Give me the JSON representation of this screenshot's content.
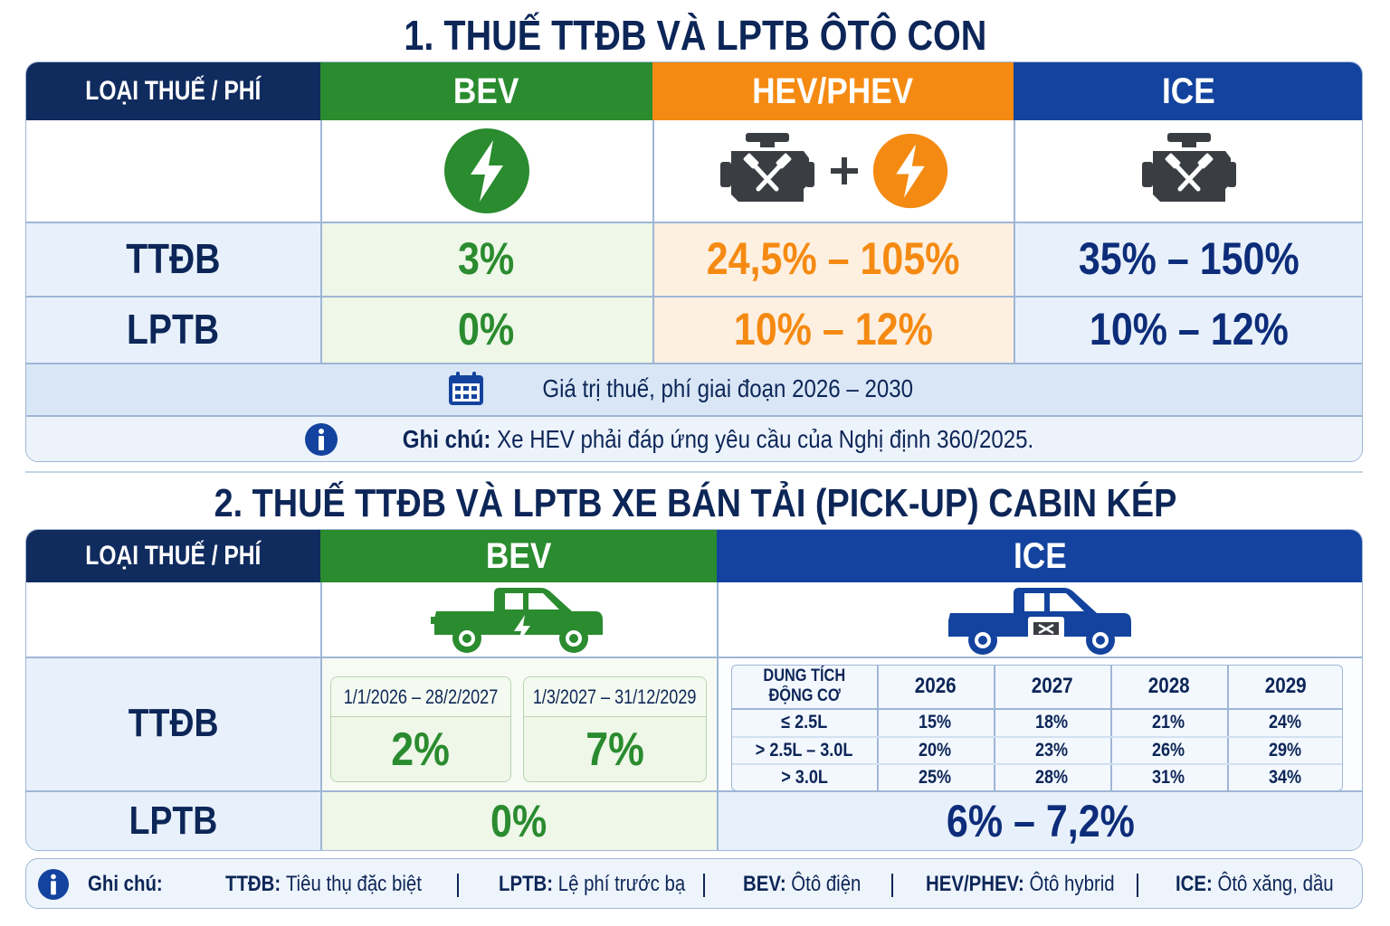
{
  "section1": {
    "title": "1. THUẾ TTĐB VÀ LPTB ÔTÔ CON",
    "header": {
      "label_col": "LOẠI THUẾ / PHÍ",
      "bev": "BEV",
      "hev": "HEV/PHEV",
      "ice": "ICE"
    },
    "icons": {
      "bev": "lightning-icon",
      "hev": [
        "engine-icon",
        "plus-icon",
        "lightning-icon"
      ],
      "ice": "engine-icon"
    },
    "rows": [
      {
        "label": "TTĐB",
        "bev": "3%",
        "hev": "24,5% – 105%",
        "ice": "35% – 150%"
      },
      {
        "label": "LPTB",
        "bev": "0%",
        "hev": "10% – 12%",
        "ice": "10% – 12%"
      }
    ],
    "period_note": "Giá trị thuế, phí giai đoạn 2026 – 2030",
    "note_label": "Ghi chú:",
    "note_text": "Xe HEV phải đáp ứng yêu cầu của Nghị định 360/2025."
  },
  "section2": {
    "title": "2. THUẾ TTĐB VÀ LPTB XE BÁN TẢI (PICK-UP) CABIN KÉP",
    "header": {
      "label_col": "LOẠI THUẾ / PHÍ",
      "bev": "BEV",
      "ice": "ICE"
    },
    "icons": {
      "bev": "electric-pickup-icon",
      "ice": "engine-pickup-icon"
    },
    "ttdb_label": "TTĐB",
    "bev_periods": [
      {
        "period": "1/1/2026 – 28/2/2027",
        "value": "2%"
      },
      {
        "period": "1/3/2027 – 31/12/2029",
        "value": "7%"
      }
    ],
    "ice_table": {
      "header_first": [
        "DUNG TÍCH",
        "ĐỘNG CƠ"
      ],
      "years": [
        "2026",
        "2027",
        "2028",
        "2029"
      ],
      "rows": [
        {
          "capacity": "≤ 2.5L",
          "values": [
            "15%",
            "18%",
            "21%",
            "24%"
          ]
        },
        {
          "capacity": "> 2.5L – 3.0L",
          "values": [
            "20%",
            "23%",
            "26%",
            "29%"
          ]
        },
        {
          "capacity": "> 3.0L",
          "values": [
            "25%",
            "28%",
            "31%",
            "34%"
          ]
        }
      ]
    },
    "lptb_label": "LPTB",
    "lptb_bev": "0%",
    "lptb_ice": "6% – 7,2%"
  },
  "legend": {
    "label": "Ghi chú:",
    "items": [
      {
        "abbr": "TTĐB:",
        "text": "Tiêu thụ đặc biệt"
      },
      {
        "abbr": "LPTB:",
        "text": "Lệ phí trước bạ"
      },
      {
        "abbr": "BEV:",
        "text": "Ôtô điện"
      },
      {
        "abbr": "HEV/PHEV:",
        "text": "Ôtô hybrid"
      },
      {
        "abbr": "ICE:",
        "text": "Ôtô xăng, dầu"
      }
    ]
  },
  "colors": {
    "navy": "#102b5e",
    "green": "#2a8b2f",
    "orange": "#f58a12",
    "blue": "#13439e",
    "light_blue_bg": "#e8f1fb"
  }
}
